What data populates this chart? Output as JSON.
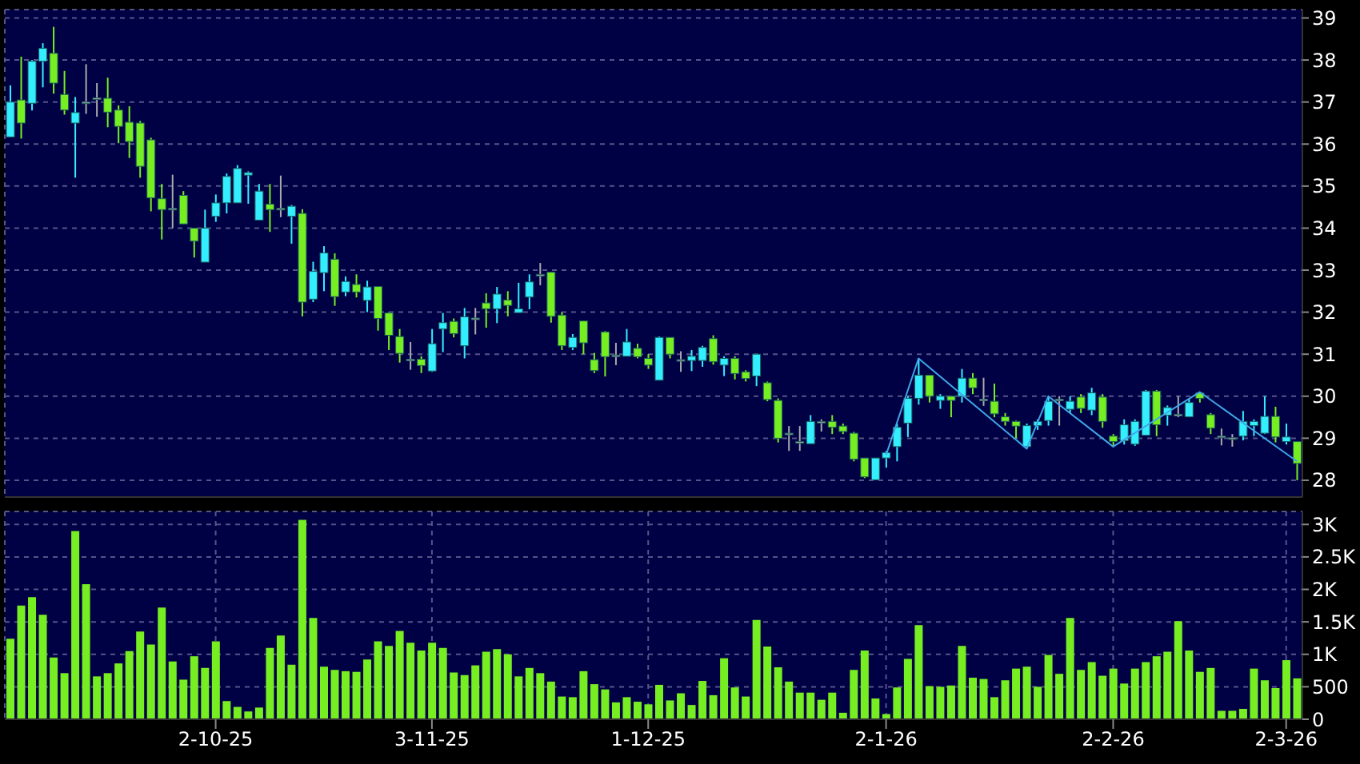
{
  "chart_data": [
    {
      "type": "candlestick",
      "categories": [
        null,
        null,
        null,
        null,
        null,
        null,
        null,
        null,
        null,
        null,
        null,
        null,
        null,
        null,
        null,
        null,
        null,
        null,
        null,
        null,
        null,
        null,
        null,
        null,
        null,
        null,
        null,
        null,
        null,
        null,
        null,
        null,
        null,
        null,
        null,
        null,
        null,
        null,
        null,
        null,
        null,
        null,
        null,
        null,
        null,
        null,
        null,
        null,
        null,
        null,
        null,
        null,
        null,
        null,
        null,
        null,
        null,
        null,
        null,
        null,
        null,
        null,
        null,
        null,
        null,
        null,
        null,
        null,
        null,
        null,
        null,
        null,
        null,
        null,
        null,
        null,
        null,
        null,
        null,
        null,
        null,
        null,
        null,
        null,
        null,
        null,
        null,
        null,
        null,
        null,
        null,
        null,
        null,
        null,
        null,
        null,
        null,
        null,
        null,
        null,
        null,
        null,
        null,
        null,
        null,
        null,
        null,
        null,
        null,
        null,
        null,
        null,
        null,
        null,
        null,
        null,
        null,
        null,
        null,
        null
      ],
      "ohlc": [
        [
          36.17,
          37.4,
          36.17,
          37.0
        ],
        [
          37.05,
          38.08,
          36.13,
          36.5
        ],
        [
          36.97,
          38.0,
          36.8,
          37.97
        ],
        [
          37.97,
          38.4,
          37.35,
          38.28
        ],
        [
          38.16,
          38.79,
          37.2,
          37.45
        ],
        [
          37.18,
          37.74,
          36.7,
          36.81
        ],
        [
          36.5,
          37.12,
          35.2,
          36.75
        ],
        [
          37.0,
          37.9,
          36.72,
          37.0
        ],
        [
          37.1,
          37.45,
          36.65,
          37.1
        ],
        [
          37.09,
          37.58,
          36.4,
          36.76
        ],
        [
          36.81,
          36.92,
          36.02,
          36.42
        ],
        [
          36.52,
          36.9,
          35.67,
          36.06
        ],
        [
          36.5,
          36.55,
          35.2,
          35.47
        ],
        [
          36.1,
          36.15,
          34.4,
          34.72
        ],
        [
          34.7,
          35.05,
          33.73,
          34.44
        ],
        [
          34.47,
          35.27,
          34.0,
          34.47
        ],
        [
          34.78,
          34.88,
          34.1,
          34.1
        ],
        [
          34.0,
          34.0,
          33.3,
          33.69
        ],
        [
          33.19,
          34.44,
          33.19,
          34.0
        ],
        [
          34.28,
          34.8,
          34.15,
          34.6
        ],
        [
          34.6,
          35.3,
          34.35,
          35.23
        ],
        [
          34.6,
          35.5,
          34.6,
          35.42
        ],
        [
          35.26,
          35.35,
          34.58,
          35.32
        ],
        [
          34.19,
          35.05,
          34.19,
          34.88
        ],
        [
          34.57,
          35.05,
          33.91,
          34.44
        ],
        [
          34.47,
          35.25,
          34.26,
          34.47
        ],
        [
          34.28,
          34.55,
          33.63,
          34.52
        ],
        [
          34.35,
          34.45,
          31.9,
          32.24
        ],
        [
          32.31,
          33.2,
          32.24,
          32.97
        ],
        [
          32.94,
          33.57,
          32.5,
          33.41
        ],
        [
          33.26,
          33.4,
          32.15,
          32.37
        ],
        [
          32.48,
          32.85,
          32.38,
          32.73
        ],
        [
          32.66,
          32.9,
          32.35,
          32.48
        ],
        [
          32.28,
          32.75,
          32.0,
          32.6
        ],
        [
          32.61,
          32.62,
          31.56,
          31.85
        ],
        [
          31.98,
          32.0,
          31.1,
          31.45
        ],
        [
          31.42,
          31.6,
          30.8,
          31.02
        ],
        [
          30.88,
          31.29,
          30.63,
          30.88
        ],
        [
          30.88,
          30.95,
          30.55,
          30.73
        ],
        [
          30.6,
          31.6,
          30.58,
          31.25
        ],
        [
          31.6,
          31.98,
          31.05,
          31.75
        ],
        [
          31.78,
          31.85,
          31.4,
          31.49
        ],
        [
          31.2,
          32.1,
          30.9,
          31.89
        ],
        [
          31.86,
          32.1,
          31.47,
          31.86
        ],
        [
          32.22,
          32.45,
          31.63,
          32.08
        ],
        [
          32.08,
          32.6,
          31.74,
          32.43
        ],
        [
          32.29,
          32.5,
          31.9,
          32.16
        ],
        [
          31.99,
          32.7,
          31.98,
          32.08
        ],
        [
          32.36,
          32.9,
          32.07,
          32.72
        ],
        [
          32.9,
          33.17,
          32.64,
          32.9
        ],
        [
          32.95,
          32.95,
          31.75,
          31.9
        ],
        [
          31.93,
          32.0,
          31.1,
          31.2
        ],
        [
          31.16,
          31.48,
          31.1,
          31.4
        ],
        [
          31.79,
          31.8,
          31.0,
          31.27
        ],
        [
          30.87,
          31.03,
          30.55,
          30.61
        ],
        [
          31.53,
          31.55,
          30.47,
          30.94
        ],
        [
          30.98,
          31.27,
          30.74,
          30.98
        ],
        [
          30.95,
          31.6,
          30.95,
          31.29
        ],
        [
          31.14,
          31.25,
          30.9,
          30.94
        ],
        [
          30.9,
          31.0,
          30.65,
          30.74
        ],
        [
          30.38,
          31.42,
          30.38,
          31.4
        ],
        [
          31.4,
          31.4,
          30.9,
          31.0
        ],
        [
          30.87,
          31.07,
          30.58,
          30.87
        ],
        [
          30.85,
          31.1,
          30.6,
          30.95
        ],
        [
          30.85,
          31.2,
          30.7,
          31.16
        ],
        [
          31.37,
          31.45,
          30.75,
          30.82
        ],
        [
          30.74,
          30.95,
          30.48,
          30.9
        ],
        [
          30.9,
          30.95,
          30.4,
          30.54
        ],
        [
          30.58,
          30.62,
          30.35,
          30.42
        ],
        [
          30.48,
          31.0,
          30.24,
          31.0
        ],
        [
          30.32,
          30.35,
          29.88,
          29.92
        ],
        [
          29.9,
          29.95,
          28.9,
          29.0
        ],
        [
          29.12,
          29.29,
          28.7,
          29.12
        ],
        [
          28.92,
          29.29,
          28.7,
          28.92
        ],
        [
          28.87,
          29.55,
          28.87,
          29.4
        ],
        [
          29.4,
          29.45,
          29.16,
          29.4
        ],
        [
          29.4,
          29.55,
          29.1,
          29.26
        ],
        [
          29.29,
          29.35,
          29.1,
          29.16
        ],
        [
          29.12,
          29.15,
          28.45,
          28.5
        ],
        [
          28.53,
          28.53,
          28.05,
          28.08
        ],
        [
          28.01,
          28.53,
          28.0,
          28.53
        ],
        [
          28.53,
          28.7,
          28.3,
          28.66
        ],
        [
          28.8,
          29.35,
          28.45,
          29.26
        ],
        [
          29.36,
          30.0,
          29.03,
          29.95
        ],
        [
          29.95,
          30.9,
          29.8,
          30.5
        ],
        [
          30.5,
          30.5,
          29.85,
          30.0
        ],
        [
          29.9,
          30.05,
          29.7,
          30.0
        ],
        [
          30.0,
          30.0,
          29.5,
          29.9
        ],
        [
          30.0,
          30.65,
          29.85,
          30.43
        ],
        [
          30.43,
          30.55,
          30.05,
          30.2
        ],
        [
          29.93,
          30.44,
          29.77,
          29.93
        ],
        [
          29.88,
          30.3,
          29.5,
          29.58
        ],
        [
          29.51,
          29.6,
          29.3,
          29.4
        ],
        [
          29.4,
          29.42,
          29.0,
          29.29
        ],
        [
          28.8,
          29.35,
          28.75,
          29.3
        ],
        [
          29.3,
          29.45,
          29.2,
          29.4
        ],
        [
          29.42,
          30.0,
          29.3,
          29.88
        ],
        [
          29.93,
          30.0,
          29.3,
          29.93
        ],
        [
          29.69,
          30.0,
          29.6,
          29.88
        ],
        [
          29.98,
          30.05,
          29.6,
          29.71
        ],
        [
          29.67,
          30.2,
          29.55,
          30.08
        ],
        [
          29.98,
          30.05,
          29.25,
          29.4
        ],
        [
          29.05,
          29.1,
          28.8,
          28.92
        ],
        [
          28.94,
          29.45,
          28.85,
          29.32
        ],
        [
          28.86,
          29.45,
          28.82,
          29.4
        ],
        [
          29.07,
          30.15,
          29.07,
          30.12
        ],
        [
          30.12,
          30.15,
          29.05,
          29.32
        ],
        [
          29.55,
          29.78,
          29.3,
          29.73
        ],
        [
          29.57,
          30.0,
          29.5,
          29.57
        ],
        [
          29.51,
          29.95,
          29.5,
          29.85
        ],
        [
          30.08,
          30.1,
          29.85,
          29.95
        ],
        [
          29.56,
          29.6,
          29.1,
          29.24
        ],
        [
          29.05,
          29.23,
          28.83,
          29.05
        ],
        [
          29.01,
          29.1,
          28.8,
          29.01
        ],
        [
          29.05,
          29.65,
          28.95,
          29.4
        ],
        [
          29.3,
          29.45,
          29.05,
          29.4
        ],
        [
          29.12,
          30.0,
          29.1,
          29.52
        ],
        [
          29.52,
          29.75,
          28.9,
          29.03
        ],
        [
          28.92,
          29.35,
          28.85,
          29.03
        ],
        [
          28.92,
          28.92,
          28.0,
          28.4
        ]
      ],
      "colors": [
        "#33eeff",
        "#77ee22",
        "#33eeff",
        "#33eeff",
        "#77ee22",
        "#77ee22",
        "#33eeff",
        "#aaaaaa",
        "#aaaaaa",
        "#77ee22",
        "#77ee22",
        "#77ee22",
        "#77ee22",
        "#77ee22",
        "#77ee22",
        "#aaaaaa",
        "#77ee22",
        "#77ee22",
        "#33eeff",
        "#33eeff",
        "#33eeff",
        "#33eeff",
        "#33eeff",
        "#33eeff",
        "#77ee22",
        "#aaaaaa",
        "#33eeff",
        "#77ee22",
        "#33eeff",
        "#33eeff",
        "#77ee22",
        "#33eeff",
        "#77ee22",
        "#33eeff",
        "#77ee22",
        "#77ee22",
        "#77ee22",
        "#aaaaaa",
        "#77ee22",
        "#33eeff",
        "#33eeff",
        "#77ee22",
        "#33eeff",
        "#aaaaaa",
        "#77ee22",
        "#33eeff",
        "#77ee22",
        "#33eeff",
        "#33eeff",
        "#aaaaaa",
        "#77ee22",
        "#77ee22",
        "#33eeff",
        "#77ee22",
        "#77ee22",
        "#77ee22",
        "#aaaaaa",
        "#33eeff",
        "#77ee22",
        "#77ee22",
        "#33eeff",
        "#77ee22",
        "#aaaaaa",
        "#33eeff",
        "#33eeff",
        "#77ee22",
        "#33eeff",
        "#77ee22",
        "#77ee22",
        "#33eeff",
        "#77ee22",
        "#77ee22",
        "#aaaaaa",
        "#aaaaaa",
        "#33eeff",
        "#aaaaaa",
        "#77ee22",
        "#77ee22",
        "#77ee22",
        "#77ee22",
        "#33eeff",
        "#33eeff",
        "#33eeff",
        "#33eeff",
        "#33eeff",
        "#77ee22",
        "#33eeff",
        "#77ee22",
        "#33eeff",
        "#77ee22",
        "#aaaaaa",
        "#77ee22",
        "#77ee22",
        "#77ee22",
        "#33eeff",
        "#33eeff",
        "#33eeff",
        "#aaaaaa",
        "#33eeff",
        "#77ee22",
        "#33eeff",
        "#77ee22",
        "#77ee22",
        "#33eeff",
        "#33eeff",
        "#33eeff",
        "#77ee22",
        "#33eeff",
        "#aaaaaa",
        "#33eeff",
        "#77ee22",
        "#77ee22",
        "#aaaaaa",
        "#aaaaaa",
        "#33eeff",
        "#33eeff",
        "#33eeff",
        "#77ee22",
        "#33eeff",
        "#77ee22"
      ],
      "series": [
        {
          "type": "line",
          "color": "#3fa6e8",
          "values": [
            null,
            null,
            null,
            null,
            null,
            null,
            null,
            null,
            null,
            null,
            null,
            null,
            null,
            null,
            null,
            null,
            null,
            null,
            null,
            null,
            null,
            null,
            null,
            null,
            null,
            null,
            null,
            null,
            null,
            null,
            null,
            null,
            null,
            null,
            null,
            null,
            null,
            null,
            null,
            null,
            null,
            null,
            null,
            null,
            null,
            null,
            null,
            null,
            null,
            null,
            null,
            null,
            null,
            null,
            null,
            null,
            null,
            null,
            null,
            null,
            null,
            null,
            null,
            null,
            null,
            null,
            null,
            null,
            null,
            null,
            null,
            null,
            null,
            null,
            null,
            null,
            null,
            null,
            null,
            null,
            null,
            28.6,
            null,
            null,
            30.9,
            null,
            null,
            null,
            null,
            null,
            null,
            null,
            null,
            null,
            28.75,
            null,
            30.0,
            null,
            null,
            null,
            null,
            null,
            28.8,
            null,
            null,
            null,
            null,
            null,
            null,
            null,
            30.1,
            null,
            null,
            null,
            null,
            null,
            null,
            null,
            null,
            28.45
          ]
        }
      ],
      "ylim": [
        27.6,
        39.2
      ],
      "yticks": [
        28,
        29,
        30,
        31,
        32,
        33,
        34,
        35,
        36,
        37,
        38,
        39
      ],
      "grid": true,
      "tick_labels": "y"
    },
    {
      "type": "bar",
      "categories": [
        null,
        null,
        null,
        null,
        null,
        null,
        null,
        null,
        null,
        null,
        null,
        null,
        null,
        null,
        null,
        null,
        null,
        null,
        null,
        "2-10-25",
        null,
        null,
        null,
        null,
        null,
        null,
        null,
        null,
        null,
        null,
        null,
        null,
        null,
        null,
        null,
        null,
        null,
        null,
        null,
        "3-11-25",
        null,
        null,
        null,
        null,
        null,
        null,
        null,
        null,
        null,
        null,
        null,
        null,
        null,
        null,
        null,
        null,
        null,
        null,
        null,
        "1-12-25",
        null,
        null,
        null,
        null,
        null,
        null,
        null,
        null,
        null,
        null,
        null,
        null,
        null,
        null,
        null,
        null,
        null,
        null,
        null,
        null,
        null,
        "2-1-26",
        null,
        null,
        null,
        null,
        null,
        null,
        null,
        null,
        null,
        null,
        null,
        null,
        null,
        null,
        null,
        null,
        null,
        null,
        null,
        null,
        "2-2-26",
        null,
        null,
        null,
        null,
        null,
        null,
        null,
        null,
        null,
        null,
        null,
        null,
        null,
        null,
        null,
        "2-3-26",
        null
      ],
      "values": [
        1240,
        1750,
        1880,
        1610,
        950,
        710,
        2900,
        2080,
        660,
        710,
        860,
        1050,
        1350,
        1150,
        1720,
        890,
        610,
        970,
        790,
        1200,
        280,
        190,
        120,
        180,
        1100,
        1290,
        840,
        3070,
        1560,
        810,
        760,
        740,
        730,
        920,
        1200,
        1130,
        1360,
        1180,
        1060,
        1180,
        1100,
        720,
        680,
        830,
        1040,
        1080,
        1000,
        660,
        790,
        710,
        580,
        350,
        340,
        740,
        540,
        460,
        260,
        340,
        270,
        230,
        530,
        290,
        400,
        220,
        590,
        370,
        940,
        490,
        350,
        1530,
        1120,
        800,
        580,
        410,
        410,
        300,
        410,
        100,
        760,
        1060,
        320,
        80,
        490,
        930,
        1450,
        510,
        500,
        520,
        1130,
        640,
        620,
        340,
        600,
        780,
        810,
        500,
        990,
        700,
        1560,
        760,
        880,
        670,
        780,
        550,
        780,
        880,
        970,
        1040,
        1510,
        1060,
        730,
        790,
        130,
        130,
        160,
        780,
        600,
        480,
        910,
        630
      ],
      "color": "#77ee22",
      "ylim": [
        0,
        3200
      ],
      "yticks": [
        0,
        500,
        {
          "value": 1000,
          "label": "1K"
        },
        {
          "value": 1500,
          "label": "1.5K"
        },
        {
          "value": 2000,
          "label": "2K"
        },
        {
          "value": 2500,
          "label": "2.5K"
        },
        {
          "value": 3000,
          "label": "3K"
        }
      ],
      "grid": true
    }
  ]
}
